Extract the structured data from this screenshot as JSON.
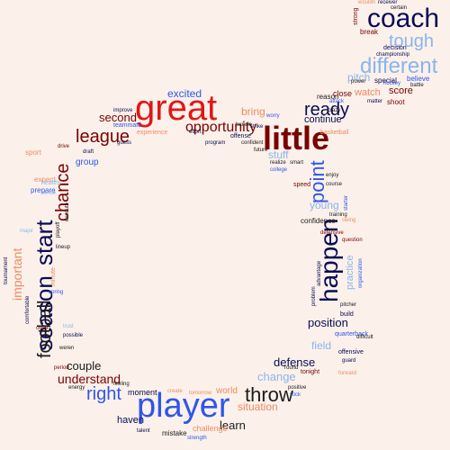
{
  "colors": {
    "background": "#fbf1ea",
    "dark_navy": "#0a0a55",
    "red": "#e31515",
    "maroon": "#7a0000",
    "blue": "#2f56e8",
    "light_blue": "#8bb4ec",
    "salmon": "#ef8a62",
    "black": "#1a1a1a"
  },
  "words": [
    "player",
    "great",
    "coach",
    "little",
    "season",
    "start",
    "happen",
    "different",
    "throw",
    "point",
    "football",
    "league",
    "chance",
    "right",
    "ready",
    "opportunity",
    "second",
    "important",
    "understand",
    "couple",
    "position",
    "defense",
    "change",
    "situation",
    "learn",
    "bring",
    "excited",
    "young",
    "stuff",
    "field",
    "practice",
    "group",
    "sport",
    "continue",
    "score",
    "watch",
    "pitch",
    "tough",
    "shoot",
    "reason",
    "close",
    "believe",
    "special",
    "decision",
    "championship",
    "break",
    "certain",
    "strong",
    "moment",
    "world",
    "haven",
    "talent",
    "mistake",
    "strength",
    "challenge",
    "tomorrow",
    "create",
    "offensive",
    "guard",
    "quarterback",
    "pitcher",
    "build",
    "difficult",
    "training",
    "confidence",
    "speed",
    "enjoy",
    "course",
    "question",
    "defensive",
    "basketball",
    "hockey",
    "power",
    "matter",
    "battle",
    "crazy",
    "attack",
    "receiver",
    "wouldn",
    "improve",
    "teammate",
    "experience",
    "effort",
    "program",
    "confident",
    "offense",
    "future",
    "realize",
    "smart",
    "strike",
    "handle",
    "worry",
    "drive",
    "college",
    "ready",
    "prepare",
    "expect",
    "healthy",
    "sense",
    "minute",
    "tournament",
    "comfortable",
    "spring",
    "trust",
    "possible",
    "court",
    "weren",
    "energy",
    "period",
    "feeling",
    "round",
    "tonight",
    "positive",
    "stick",
    "advantage",
    "organization",
    "problem",
    "starter",
    "execute",
    "playoff",
    "lineup",
    "major",
    "draft",
    "guess",
    "forward",
    "swing",
    "game",
    "fight",
    "deal",
    "final"
  ]
}
